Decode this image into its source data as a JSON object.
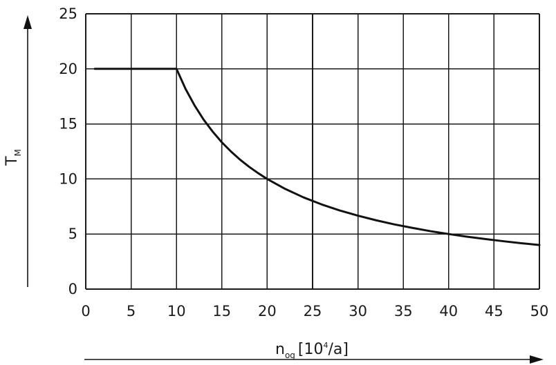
{
  "chart_data": {
    "type": "line",
    "title": "",
    "xlabel": {
      "main": "n",
      "sub": "og",
      "unit_prefix": "[10",
      "unit_sup": "4",
      "unit_suffix": "/a]"
    },
    "ylabel": {
      "main": "T",
      "sub": "M"
    },
    "xlim": [
      0,
      50
    ],
    "ylim": [
      0,
      25
    ],
    "xticks": [
      0,
      5,
      10,
      15,
      20,
      25,
      30,
      35,
      40,
      45,
      50
    ],
    "yticks": [
      0,
      5,
      10,
      15,
      20,
      25
    ],
    "grid": true,
    "legend": "none",
    "series": [
      {
        "x": [
          1,
          10,
          11,
          12,
          13,
          14,
          15,
          16,
          17,
          18,
          19,
          20,
          22,
          24,
          26,
          28,
          30,
          32,
          34,
          36,
          38,
          40,
          42,
          44,
          46,
          48,
          50
        ],
        "y": [
          20,
          20,
          18.18,
          16.67,
          15.38,
          14.29,
          13.33,
          12.5,
          11.76,
          11.11,
          10.53,
          10,
          9.09,
          8.33,
          7.69,
          7.14,
          6.67,
          6.25,
          5.88,
          5.56,
          5.26,
          5,
          4.76,
          4.55,
          4.35,
          4.17,
          4
        ]
      }
    ],
    "colors": {
      "line": "#111111",
      "grid": "#1a1a1a",
      "background": "#ffffff"
    }
  }
}
